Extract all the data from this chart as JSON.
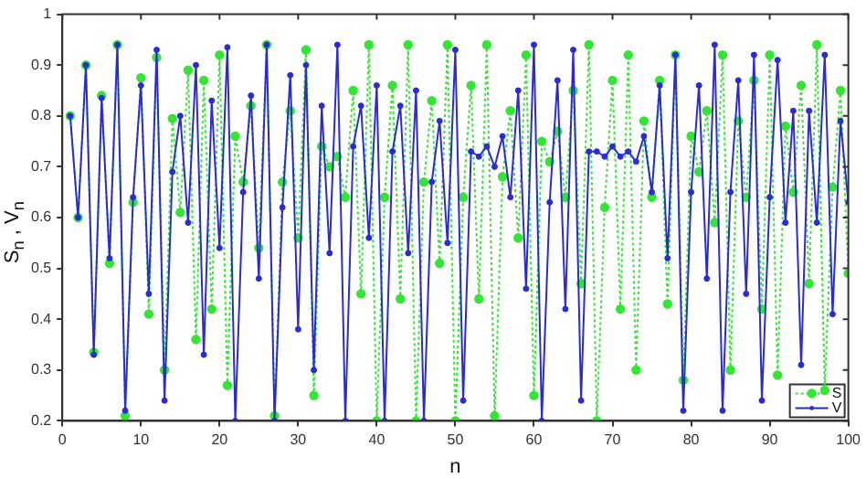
{
  "chart_data": {
    "type": "line",
    "xlabel": "n",
    "ylabel": "S$_{n}$ , V$_{n}$",
    "x": [
      1,
      2,
      3,
      4,
      5,
      6,
      7,
      8,
      9,
      10,
      11,
      12,
      13,
      14,
      15,
      16,
      17,
      18,
      19,
      20,
      21,
      22,
      23,
      24,
      25,
      26,
      27,
      28,
      29,
      30,
      31,
      32,
      33,
      34,
      35,
      36,
      37,
      38,
      39,
      40,
      41,
      42,
      43,
      44,
      45,
      46,
      47,
      48,
      49,
      50,
      51,
      52,
      53,
      54,
      55,
      56,
      57,
      58,
      59,
      60,
      61,
      62,
      63,
      64,
      65,
      66,
      67,
      68,
      69,
      70,
      71,
      72,
      73,
      74,
      75,
      76,
      77,
      78,
      79,
      80,
      81,
      82,
      83,
      84,
      85,
      86,
      87,
      88,
      89,
      90,
      91,
      92,
      93,
      94,
      95,
      96,
      97,
      98,
      99,
      100
    ],
    "series": [
      {
        "name": "S",
        "color": "#33e633",
        "marker": "circle",
        "line_style": "dotted",
        "values": [
          0.8,
          0.6,
          0.9,
          0.335,
          0.84,
          0.51,
          0.94,
          0.21,
          0.63,
          0.875,
          0.41,
          0.915,
          0.3,
          0.795,
          0.61,
          0.89,
          0.36,
          0.87,
          0.42,
          0.92,
          0.27,
          0.76,
          0.67,
          0.82,
          0.54,
          0.94,
          0.21,
          0.67,
          0.81,
          0.56,
          0.93,
          0.25,
          0.74,
          0.7,
          0.72,
          0.64,
          0.85,
          0.45,
          0.94,
          0.2,
          0.64,
          0.86,
          0.44,
          0.94,
          0.2,
          0.67,
          0.83,
          0.51,
          0.94,
          0.2,
          0.64,
          0.86,
          0.44,
          0.94,
          0.21,
          0.68,
          0.81,
          0.56,
          0.92,
          0.25,
          0.75,
          0.71,
          0.77,
          0.64,
          0.85,
          0.47,
          0.94,
          0.2,
          0.62,
          0.87,
          0.42,
          0.92,
          0.3,
          0.79,
          0.64,
          0.87,
          0.43,
          0.92,
          0.28,
          0.76,
          0.69,
          0.81,
          0.59,
          0.92,
          0.3,
          0.79,
          0.64,
          0.87,
          0.42,
          0.92,
          0.29,
          0.78,
          0.65,
          0.86,
          0.47,
          0.94,
          0.26,
          0.66,
          0.85,
          0.49
        ]
      },
      {
        "name": "V",
        "color": "#2b2bd6",
        "marker": "circle",
        "line_style": "solid",
        "values": [
          0.8,
          0.6,
          0.9,
          0.33,
          0.835,
          0.52,
          0.94,
          0.22,
          0.64,
          0.86,
          0.45,
          0.93,
          0.24,
          0.69,
          0.8,
          0.59,
          0.9,
          0.33,
          0.83,
          0.54,
          0.935,
          0.2,
          0.65,
          0.84,
          0.48,
          0.94,
          0.2,
          0.62,
          0.88,
          0.38,
          0.9,
          0.3,
          0.82,
          0.53,
          0.94,
          0.2,
          0.74,
          0.82,
          0.56,
          0.86,
          0.2,
          0.73,
          0.82,
          0.53,
          0.85,
          0.2,
          0.67,
          0.79,
          0.55,
          0.93,
          0.24,
          0.73,
          0.72,
          0.74,
          0.7,
          0.76,
          0.64,
          0.85,
          0.46,
          0.94,
          0.2,
          0.63,
          0.87,
          0.42,
          0.93,
          0.24,
          0.73,
          0.73,
          0.72,
          0.74,
          0.72,
          0.73,
          0.71,
          0.76,
          0.65,
          0.86,
          0.52,
          0.92,
          0.22,
          0.65,
          0.86,
          0.48,
          0.94,
          0.22,
          0.65,
          0.87,
          0.45,
          0.92,
          0.24,
          0.64,
          0.91,
          0.59,
          0.81,
          0.31,
          0.81,
          0.59,
          0.92,
          0.41,
          0.79,
          0.63
        ]
      }
    ],
    "xlim": [
      0,
      100
    ],
    "xticks": [
      0,
      10,
      20,
      30,
      40,
      50,
      60,
      70,
      80,
      90,
      100
    ],
    "ylim": [
      0.2,
      1
    ],
    "yticks": [
      0.2,
      0.3,
      0.4,
      0.5,
      0.6,
      0.7,
      0.8,
      0.9,
      1
    ],
    "grid": false,
    "legend": "bottom right"
  }
}
